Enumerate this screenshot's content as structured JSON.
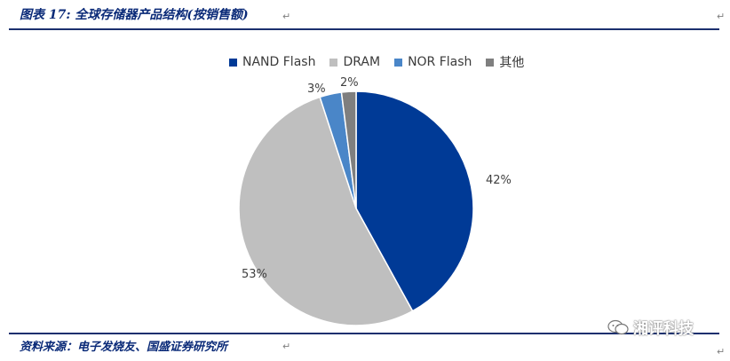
{
  "header": {
    "title": "图表 17:  全球存储器产品结构(按销售额)"
  },
  "footer": {
    "source": "资料来源：电子发烧友、国盛证券研究所"
  },
  "watermark": {
    "text": "湘评科技",
    "icon": "wechat-icon"
  },
  "chart_data": {
    "type": "pie",
    "title": "",
    "legend_position": "top",
    "categories": [
      "NAND Flash",
      "DRAM",
      "NOR Flash",
      "其他"
    ],
    "values": [
      42,
      53,
      3,
      2
    ],
    "labels": [
      "42%",
      "53%",
      "3%",
      "2%"
    ],
    "colors": [
      "#003a96",
      "#bfbfbf",
      "#4a86c8",
      "#7f7f7f"
    ]
  }
}
